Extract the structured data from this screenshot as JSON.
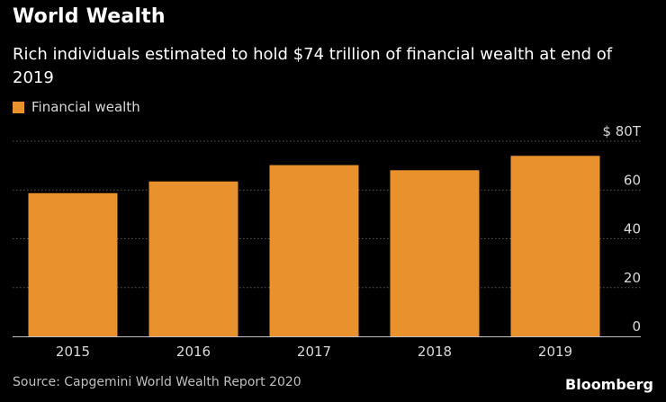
{
  "header": {
    "title": "World Wealth",
    "subtitle": "Rich individuals estimated to hold $74 trillion of financial wealth at end of 2019"
  },
  "legend": {
    "label": "Financial wealth"
  },
  "footer": {
    "source": "Source: Capgemini World Wealth Report 2020",
    "brand": "Bloomberg"
  },
  "colors": {
    "background": "#000000",
    "bar": "#E8912D",
    "grid": "#5a5a5a",
    "text": "#ffffff",
    "muted": "#d9d9d9"
  },
  "chart_data": {
    "type": "bar",
    "title": "World Wealth",
    "subtitle": "Rich individuals estimated to hold $74 trillion of financial wealth at end of 2019",
    "categories": [
      "2015",
      "2016",
      "2017",
      "2018",
      "2019"
    ],
    "series": [
      {
        "name": "Financial wealth",
        "values": [
          58.7,
          63.5,
          70.2,
          68.1,
          74.0
        ]
      }
    ],
    "xlabel": "",
    "ylabel": "",
    "ylim": [
      0,
      80
    ],
    "yticks": [
      0,
      20,
      40,
      60,
      80
    ],
    "ytick_labels": [
      "0",
      "20",
      "40",
      "60",
      "$ 80T"
    ],
    "y_axis_side": "right",
    "grid": true,
    "legend_position": "top-left",
    "source": "Source: Capgemini World Wealth Report 2020"
  }
}
